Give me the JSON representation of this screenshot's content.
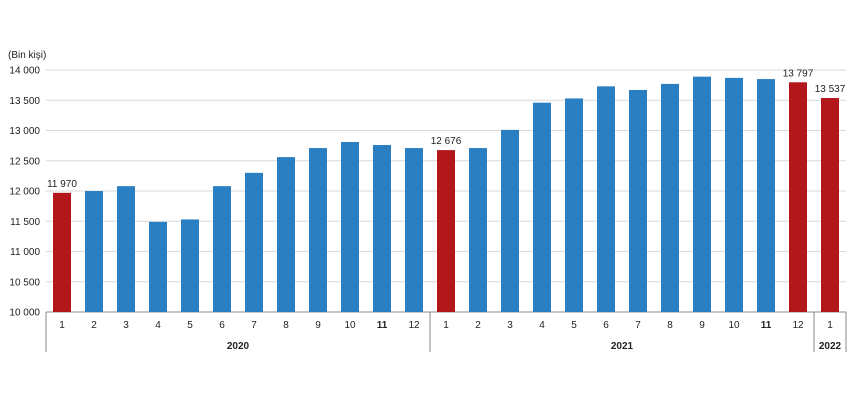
{
  "chart_data": {
    "type": "bar",
    "unit_label": "(Bin kişi)",
    "ylim": [
      10000,
      14000
    ],
    "yticks": [
      "10 000",
      "10 500",
      "11 000",
      "11 500",
      "12 000",
      "12 500",
      "13 000",
      "13 500",
      "14 000"
    ],
    "ytick_values": [
      10000,
      10500,
      11000,
      11500,
      12000,
      12500,
      13000,
      13500,
      14000
    ],
    "categories": [
      "1",
      "2",
      "3",
      "4",
      "5",
      "6",
      "7",
      "8",
      "9",
      "10",
      "11",
      "12",
      "1",
      "2",
      "3",
      "4",
      "5",
      "6",
      "7",
      "8",
      "9",
      "10",
      "11",
      "12",
      "1"
    ],
    "values": [
      11970,
      12000,
      12080,
      11490,
      11530,
      12080,
      12300,
      12560,
      12710,
      12810,
      12760,
      12710,
      12676,
      12710,
      13010,
      13460,
      13530,
      13730,
      13670,
      13770,
      13890,
      13870,
      13850,
      13797,
      13537
    ],
    "highlight": [
      true,
      false,
      false,
      false,
      false,
      false,
      false,
      false,
      false,
      false,
      false,
      false,
      true,
      false,
      false,
      false,
      false,
      false,
      false,
      false,
      false,
      false,
      false,
      true,
      true
    ],
    "data_labels": [
      "11 970",
      "",
      "",
      "",
      "",
      "",
      "",
      "",
      "",
      "",
      "",
      "",
      "12 676",
      "",
      "",
      "",
      "",
      "",
      "",
      "",
      "",
      "",
      "",
      "13 797",
      "13 537"
    ],
    "bold_categories": [
      false,
      false,
      false,
      false,
      false,
      false,
      false,
      false,
      false,
      false,
      true,
      false,
      false,
      false,
      false,
      false,
      false,
      false,
      false,
      false,
      false,
      false,
      true,
      false,
      false
    ],
    "years": [
      {
        "label": "2020",
        "start": 0,
        "end": 11,
        "bold": true
      },
      {
        "label": "2021",
        "start": 12,
        "end": 23,
        "bold": true
      },
      {
        "label": "2022",
        "start": 24,
        "end": 24,
        "bold": true
      }
    ],
    "colors": {
      "normal": "#2a7fc2",
      "highlight": "#b3171c",
      "grid": "#d9d9d9",
      "axis": "#888888"
    },
    "grid": true
  }
}
